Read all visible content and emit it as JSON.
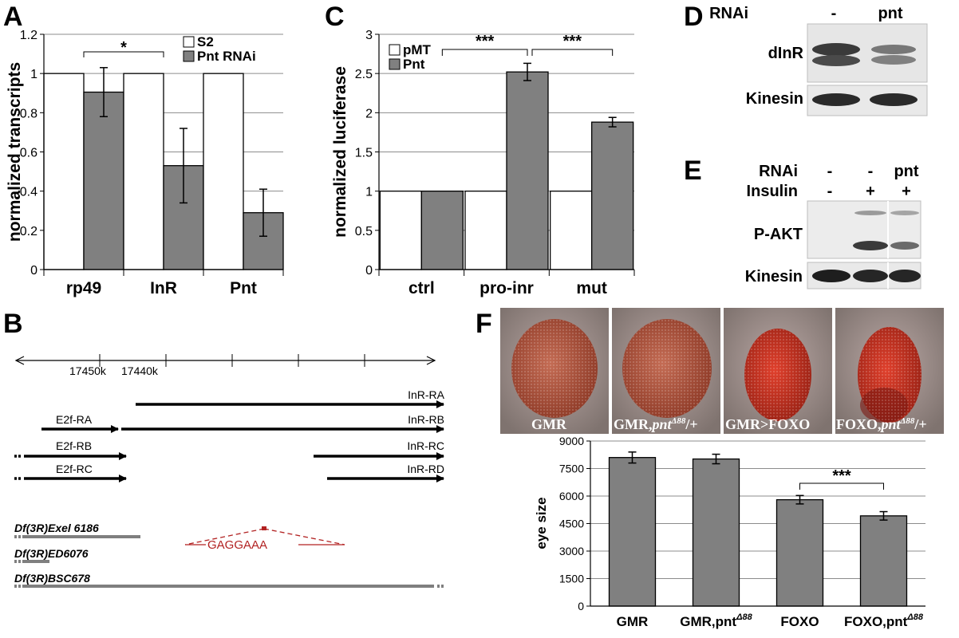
{
  "panels": {
    "A": "A",
    "B": "B",
    "C": "C",
    "D": "D",
    "E": "E",
    "F": "F"
  },
  "colors": {
    "ctrl_bar": "#ffffff",
    "treat_bar": "#808080",
    "deletion": "#b22222",
    "df_bar": "#7f7f7f"
  },
  "chart_data": [
    {
      "id": "A",
      "type": "bar",
      "ylabel": "normalized transcripts",
      "ylim": [
        0,
        1.2
      ],
      "yticks": [
        "0",
        "0.2",
        "0.4",
        "0.6",
        "0.8",
        "1",
        "1.2"
      ],
      "categories": [
        "rp49",
        "InR",
        "Pnt"
      ],
      "series": [
        {
          "name": "S2",
          "values": [
            1,
            1,
            1
          ],
          "errors": [
            0,
            0,
            0
          ]
        },
        {
          "name": "Pnt RNAi",
          "values": [
            0.905,
            0.53,
            0.29
          ],
          "errors": [
            0.125,
            0.19,
            0.12
          ]
        }
      ],
      "legend": "top-right",
      "grid": true,
      "significance": [
        {
          "label": "*",
          "between": [
            "rp49",
            "InR"
          ]
        }
      ]
    },
    {
      "id": "C",
      "type": "bar",
      "ylabel": "normalized luciferase",
      "ylim": [
        0,
        3
      ],
      "yticks": [
        "0",
        "0.5",
        "1",
        "1.5",
        "2",
        "2.5",
        "3"
      ],
      "categories": [
        "ctrl",
        "pro-inr",
        "mut"
      ],
      "series": [
        {
          "name": "pMT",
          "values": [
            1,
            1,
            1
          ],
          "errors": [
            0,
            0,
            0
          ]
        },
        {
          "name": "Pnt",
          "values": [
            1,
            2.52,
            1.88
          ],
          "errors": [
            0,
            0.11,
            0.06
          ]
        }
      ],
      "legend": "top-left",
      "grid": true,
      "significance": [
        {
          "label": "***",
          "between": [
            "ctrl",
            "pro-inr"
          ]
        },
        {
          "label": "***",
          "between": [
            "pro-inr",
            "mut"
          ]
        }
      ]
    },
    {
      "id": "F",
      "type": "bar",
      "ylabel": "eye size",
      "ylim": [
        0,
        9000
      ],
      "yticks": [
        "0",
        "1500",
        "3000",
        "4500",
        "6000",
        "7500",
        "9000"
      ],
      "categories": [
        {
          "main": "GMR",
          "sup": ""
        },
        {
          "main": "GMR,pnt",
          "sup": "Δ88"
        },
        {
          "main": "FOXO",
          "sup": ""
        },
        {
          "main": "FOXO,pnt",
          "sup": "Δ88"
        }
      ],
      "series": [
        {
          "values": [
            8100,
            8020,
            5800,
            4920
          ],
          "errors": [
            300,
            260,
            230,
            230
          ]
        }
      ],
      "grid": true,
      "significance": [
        {
          "label": "***",
          "between": [
            "FOXO",
            "FOXO,pnt"
          ]
        }
      ]
    }
  ],
  "panelB": {
    "ticks": [
      "17450k",
      "17440k"
    ],
    "transcripts": [
      "InR-RA",
      "InR-RB",
      "InR-RC",
      "InR-RD",
      "E2f-RA",
      "E2f-RB",
      "E2f-RC"
    ],
    "deficiencies": [
      "Df(3R)Exel 6186",
      "Df(3R)ED6076",
      "Df(3R)BSC678"
    ],
    "deletion_seq": "GAGGAAA"
  },
  "panelD": {
    "rnai_label": "RNAi",
    "lanes": [
      "-",
      "pnt"
    ],
    "rows": [
      "dInR",
      "Kinesin"
    ]
  },
  "panelE": {
    "rnai_label": "RNAi",
    "insulin_label": "Insulin",
    "rnai_lanes": [
      "-",
      "-",
      "pnt"
    ],
    "insulin_lanes": [
      "-",
      "+",
      "+"
    ],
    "rows": [
      "P-AKT",
      "Kinesin"
    ]
  },
  "panelF_eyes": [
    {
      "main": "GMR",
      "sup": "",
      "tail": ""
    },
    {
      "main": "GMR,",
      "italic": "pnt",
      "sup": "Δ88",
      "tail": "/+"
    },
    {
      "main": "GMR>FOXO",
      "sup": "",
      "tail": ""
    },
    {
      "main": "FOXO,",
      "italic": "pnt",
      "sup": "Δ88",
      "tail": "/+"
    }
  ]
}
